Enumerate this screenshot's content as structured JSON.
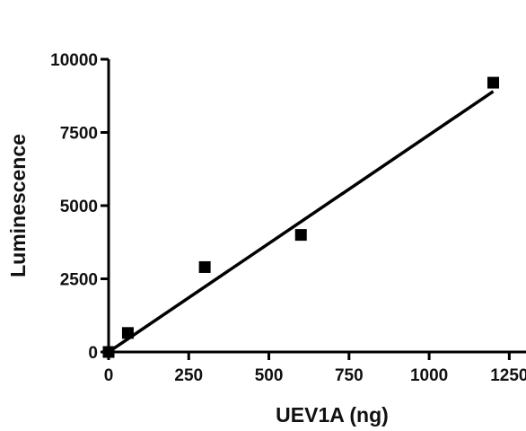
{
  "chart_data": {
    "type": "scatter",
    "title": "",
    "xlabel": "UEV1A (ng)",
    "ylabel": "Luminescence",
    "xlim": [
      0,
      1375
    ],
    "ylim": [
      0,
      10000
    ],
    "x_ticks": [
      0,
      250,
      500,
      750,
      1000,
      1250
    ],
    "y_ticks": [
      0,
      2500,
      5000,
      7500,
      10000
    ],
    "grid": false,
    "legend": "none",
    "series": [
      {
        "points": [
          {
            "x": 0,
            "y": 0
          },
          {
            "x": 60,
            "y": 650
          },
          {
            "x": 300,
            "y": 2900
          },
          {
            "x": 600,
            "y": 4000
          },
          {
            "x": 1200,
            "y": 9200
          }
        ],
        "marker": "square",
        "color": "#000000"
      }
    ],
    "fit_line": {
      "x": [
        0,
        1200
      ],
      "y": [
        0,
        8900
      ],
      "color": "#000000"
    }
  }
}
